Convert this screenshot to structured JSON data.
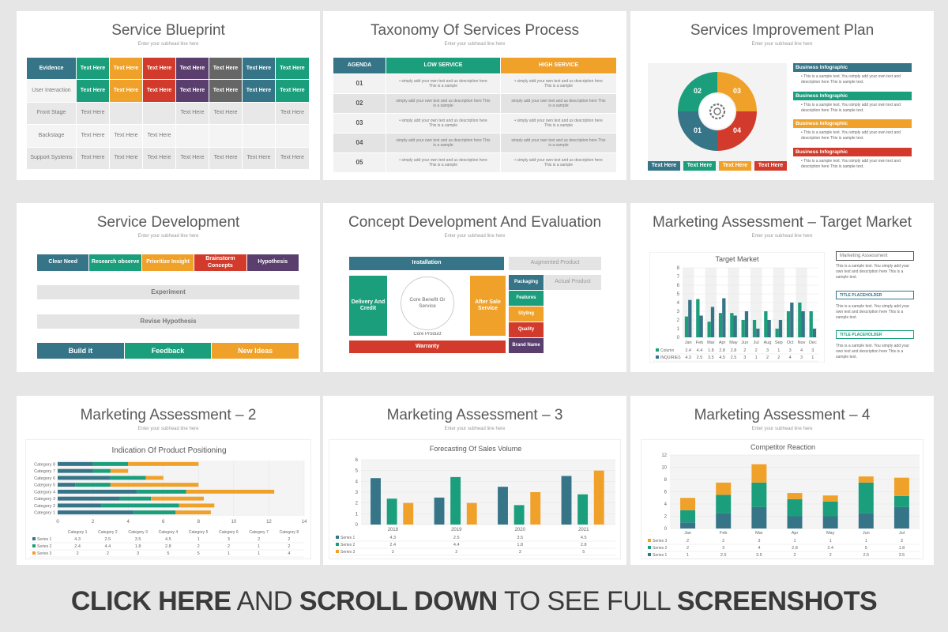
{
  "slides": {
    "s1": {
      "title": "Service Blueprint",
      "subtitle": "Enter your subhead line here",
      "header": "Evidence",
      "rows": [
        "User Interaction",
        "Front Stage",
        "Backstage",
        "Support Systems"
      ],
      "cell": "Text Here"
    },
    "s2": {
      "title": "Taxonomy Of Services Process",
      "subtitle": "Enter your subhead line here",
      "h_agenda": "AGENDA",
      "h_low": "LOW SERVICE",
      "h_high": "HIGH SERVICE",
      "nums": [
        "01",
        "02",
        "03",
        "04",
        "05"
      ],
      "text_a": "simply add your own text and us description here This is a sample",
      "text_b": "simply add your own text and us description here This is a sample"
    },
    "s3": {
      "title": "Services Improvement Plan",
      "subtitle": "Enter your subhead line here",
      "segments": [
        "01",
        "02",
        "03",
        "04"
      ],
      "box_title": "Business Infographic",
      "box_text": "This is a sample text. You simply add your own text and description here This is sample text.",
      "labels": [
        "Text Here",
        "Text Here",
        "Text Here",
        "Text Here"
      ],
      "colors": [
        "#367588",
        "#1b9e7b",
        "#f0a12a",
        "#d23b2c"
      ]
    },
    "s4": {
      "title": "Service Development",
      "subtitle": "Enter your subhead line here",
      "top": [
        "Clear Need",
        "Research observe",
        "Prioritize Insight",
        "Brainstorm Concepts",
        "Hypothesis"
      ],
      "experiment": "Experiment",
      "revise": "Revise Hypothesis",
      "bottom": [
        "Build it",
        "Feedback",
        "New Ideas"
      ]
    },
    "s5": {
      "title": "Concept Development And Evaluation",
      "subtitle": "Enter your subhead line here",
      "installation": "Installation",
      "augmented": "Augmented Product",
      "actual": "Actual Product",
      "delivery": "Delivery And Credit",
      "core_benefit": "Core Benefit Or Service",
      "after_sale": "After Sale Service",
      "core_product": "Core Product",
      "warranty": "Warranty",
      "stack": [
        "Packaging",
        "Features",
        "Styling",
        "Quality",
        "Brand Name"
      ]
    },
    "s6": {
      "title": "Marketing Assessment – Target Market",
      "subtitle": "Enter your subhead line here",
      "side_title": "Marketing Assessment",
      "side_text": "This is a sample text. You simply add your own text and description here This is a sample text.",
      "placeholder": "TITLE PLACEHOLDER",
      "row_labels": [
        "Column",
        "INQUIRIES"
      ]
    },
    "s7": {
      "title": "Marketing Assessment – 2",
      "subtitle": "Enter your subhead line here"
    },
    "s8": {
      "title": "Marketing Assessment – 3",
      "subtitle": "Enter your subhead line here"
    },
    "s9": {
      "title": "Marketing Assessment – 4",
      "subtitle": "Enter your subhead line here"
    }
  },
  "chart_data": [
    {
      "type": "bar",
      "title": "Target Market",
      "categories": [
        "Jan",
        "Feb",
        "Mar",
        "Apr",
        "May",
        "Jun",
        "Jul",
        "Aug",
        "Sep",
        "Oct",
        "Nov",
        "Dec"
      ],
      "series": [
        {
          "name": "Column",
          "values": [
            2.4,
            4.4,
            1.8,
            2.8,
            2.8,
            2,
            2,
            3,
            1,
            3,
            4,
            3
          ]
        },
        {
          "name": "INQUIRIES",
          "values": [
            4.3,
            2.5,
            3.5,
            4.5,
            2.5,
            3,
            1,
            2,
            2,
            4,
            3,
            1
          ]
        }
      ],
      "ylim": [
        0,
        8
      ],
      "yticks": [
        0,
        1,
        2,
        3,
        4,
        5,
        6,
        7,
        8
      ],
      "colors": [
        "#1b9e7b",
        "#367588"
      ]
    },
    {
      "type": "bar",
      "title": "Indication Of Product Positioning",
      "categories": [
        "Category 1",
        "Category 2",
        "Category 3",
        "Category 4",
        "Category 5",
        "Category 6",
        "Category 7",
        "Category 8"
      ],
      "series": [
        {
          "name": "Series 1",
          "values": [
            4.3,
            2.5,
            3.5,
            4.5,
            1,
            3,
            2,
            2
          ]
        },
        {
          "name": "Series 2",
          "values": [
            2.4,
            4.4,
            1.8,
            2.8,
            2,
            2,
            1,
            2
          ]
        },
        {
          "name": "Series 3",
          "values": [
            2,
            2,
            3,
            5,
            5,
            1,
            1,
            4
          ]
        }
      ],
      "xlim": [
        0,
        14
      ],
      "xticks": [
        0,
        2,
        4,
        6,
        8,
        10,
        12,
        14
      ],
      "colors": [
        "#367588",
        "#1b9e7b",
        "#f0a12a"
      ]
    },
    {
      "type": "bar",
      "title": "Forecasting Of Sales Volume",
      "categories": [
        "2018",
        "2019",
        "2020",
        "2021"
      ],
      "series": [
        {
          "name": "Series 1",
          "values": [
            4.3,
            2.5,
            3.5,
            4.5
          ]
        },
        {
          "name": "Series 2",
          "values": [
            2.4,
            4.4,
            1.8,
            2.8
          ]
        },
        {
          "name": "Series 3",
          "values": [
            2,
            2,
            3,
            5
          ]
        }
      ],
      "ylim": [
        0,
        6
      ],
      "yticks": [
        0,
        1,
        2,
        3,
        4,
        5,
        6
      ],
      "colors": [
        "#367588",
        "#1b9e7b",
        "#f0a12a"
      ]
    },
    {
      "type": "bar",
      "title": "Competitor Reaction",
      "categories": [
        "Jan",
        "Feb",
        "Mar",
        "Apr",
        "May",
        "Jun",
        "Jul"
      ],
      "series": [
        {
          "name": "Series 1",
          "values": [
            1,
            2.5,
            3.5,
            2,
            2,
            2.5,
            3.5
          ]
        },
        {
          "name": "Series 2",
          "values": [
            2,
            3,
            4,
            2.8,
            2.4,
            5,
            1.8
          ]
        },
        {
          "name": "Series 3",
          "values": [
            2,
            2,
            3,
            1,
            1,
            1,
            3
          ]
        }
      ],
      "ylim": [
        0,
        12
      ],
      "yticks": [
        0,
        2,
        4,
        6,
        8,
        10,
        12
      ],
      "colors": [
        "#367588",
        "#1b9e7b",
        "#f0a12a"
      ]
    }
  ],
  "banner": {
    "part1": "CLICK HERE",
    "part2": " AND ",
    "part3": "SCROLL DOWN",
    "part4": " TO SEE FULL ",
    "part5": "SCREENSHOTS"
  }
}
